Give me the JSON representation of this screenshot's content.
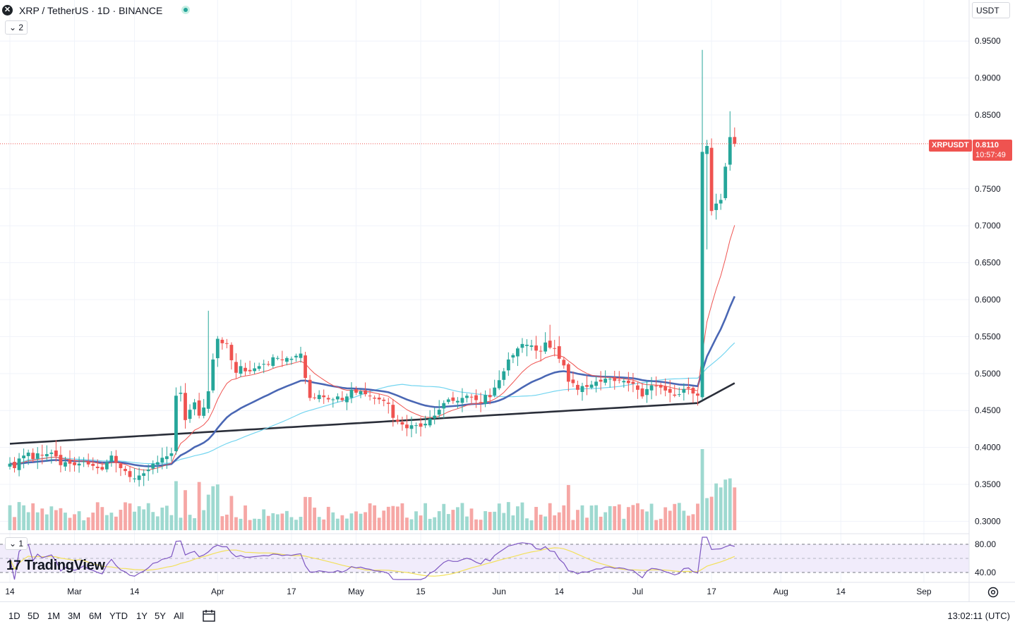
{
  "header": {
    "title": "XRP / TetherUS · 1D · BINANCE",
    "symbol_badge": "✕",
    "indicators_count": "2",
    "currency": "USDT"
  },
  "price_tag": {
    "symbol": "XRPUSDT",
    "value": "0.8110",
    "countdown": "10:57:49"
  },
  "rsi_panel": {
    "count": "1",
    "levels": [
      "80.00",
      "40.00"
    ]
  },
  "logo": {
    "text": "TradingView",
    "mark": "17"
  },
  "bottom_bar": {
    "ranges": [
      "1D",
      "5D",
      "1M",
      "3M",
      "6M",
      "YTD",
      "1Y",
      "5Y",
      "All"
    ],
    "clock": "13:02:11 (UTC)"
  },
  "colors": {
    "up": "#26a69a",
    "down": "#ef5350",
    "volume_up": "#9ed9d0",
    "volume_down": "#f6a7a5",
    "ma_red": "#ef5350",
    "ma_blue": "#4a67b4",
    "ma_lightblue": "#73d5f0",
    "ma_dark": "#2a2e39",
    "rsi": "#7e57c2",
    "rsi_ma": "#f2e05b"
  },
  "chart_data": {
    "type": "candlestick",
    "title": "XRP / TetherUS · 1D · BINANCE",
    "y_ticks": [
      "0.9500",
      "0.9000",
      "0.8500",
      "0.7500",
      "0.7000",
      "0.6500",
      "0.6000",
      "0.5500",
      "0.5000",
      "0.4500",
      "0.4000",
      "0.3500",
      "0.3000"
    ],
    "ylim": [
      0.288,
      0.975
    ],
    "x_ticks": [
      {
        "label": "14",
        "day": 0
      },
      {
        "label": "Mar",
        "day": 14
      },
      {
        "label": "14",
        "day": 27
      },
      {
        "label": "Apr",
        "day": 45
      },
      {
        "label": "17",
        "day": 61
      },
      {
        "label": "May",
        "day": 75
      },
      {
        "label": "15",
        "day": 89
      },
      {
        "label": "Jun",
        "day": 106
      },
      {
        "label": "14",
        "day": 119
      },
      {
        "label": "Jul",
        "day": 136
      },
      {
        "label": "17",
        "day": 152
      },
      {
        "label": "Aug",
        "day": 167
      },
      {
        "label": "14",
        "day": 180
      },
      {
        "label": "Sep",
        "day": 198
      }
    ],
    "last_price": 0.811,
    "closes": [
      0.378,
      0.372,
      0.385,
      0.389,
      0.393,
      0.384,
      0.392,
      0.389,
      0.391,
      0.393,
      0.388,
      0.376,
      0.38,
      0.378,
      0.376,
      0.378,
      0.381,
      0.377,
      0.375,
      0.372,
      0.37,
      0.38,
      0.389,
      0.38,
      0.372,
      0.368,
      0.36,
      0.358,
      0.362,
      0.365,
      0.37,
      0.378,
      0.38,
      0.386,
      0.388,
      0.392,
      0.47,
      0.474,
      0.437,
      0.451,
      0.461,
      0.443,
      0.454,
      0.476,
      0.519,
      0.547,
      0.541,
      0.541,
      0.518,
      0.501,
      0.51,
      0.503,
      0.503,
      0.507,
      0.51,
      0.513,
      0.512,
      0.522,
      0.521,
      0.518,
      0.521,
      0.52,
      0.524,
      0.527,
      0.494,
      0.467,
      0.467,
      0.471,
      0.468,
      0.465,
      0.465,
      0.469,
      0.464,
      0.469,
      0.478,
      0.474,
      0.476,
      0.472,
      0.47,
      0.466,
      0.465,
      0.463,
      0.459,
      0.44,
      0.435,
      0.431,
      0.426,
      0.43,
      0.43,
      0.428,
      0.432,
      0.439,
      0.443,
      0.451,
      0.46,
      0.465,
      0.463,
      0.463,
      0.467,
      0.47,
      0.468,
      0.464,
      0.461,
      0.471,
      0.468,
      0.481,
      0.491,
      0.503,
      0.519,
      0.525,
      0.534,
      0.54,
      0.539,
      0.538,
      0.531,
      0.53,
      0.542,
      0.535,
      0.534,
      0.52,
      0.511,
      0.489,
      0.487,
      0.478,
      0.483,
      0.482,
      0.485,
      0.489,
      0.489,
      0.493,
      0.493,
      0.49,
      0.491,
      0.49,
      0.487,
      0.486,
      0.478,
      0.469,
      0.479,
      0.484,
      0.483,
      0.481,
      0.477,
      0.474,
      0.47,
      0.472,
      0.479,
      0.48,
      0.473,
      0.47,
      0.8,
      0.808,
      0.72,
      0.73,
      0.735,
      0.78,
      0.82,
      0.811
    ],
    "volume_range": [
      0,
      1000
    ],
    "rsi": {
      "levels": [
        80,
        40
      ],
      "ylim": [
        28,
        92
      ]
    }
  }
}
